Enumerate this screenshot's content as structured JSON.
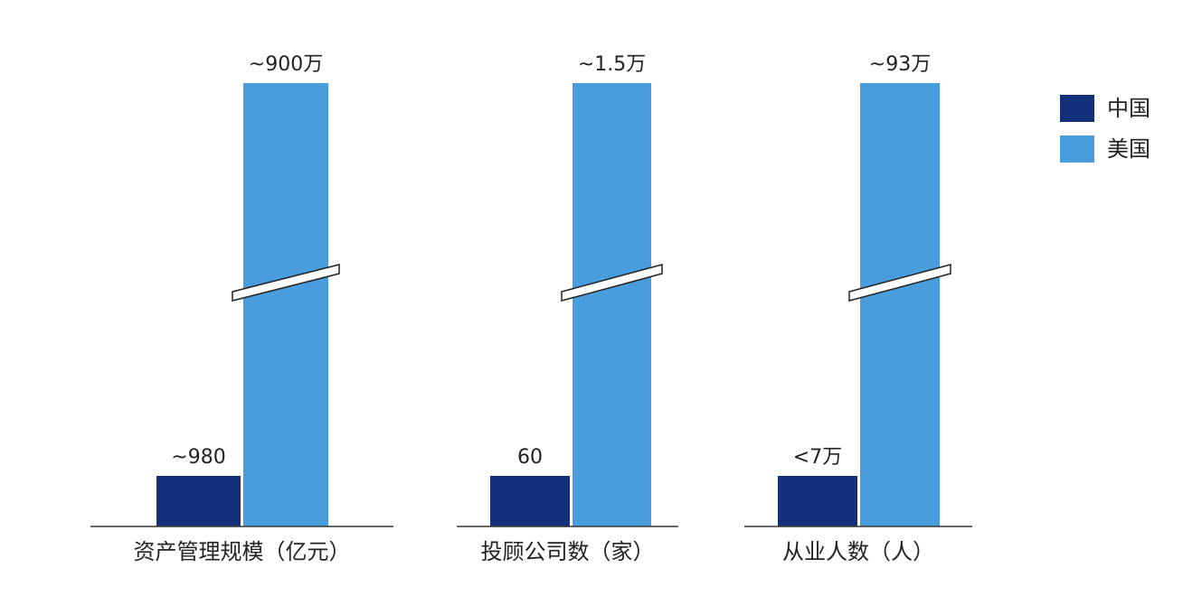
{
  "chart_data": {
    "type": "bar",
    "categories": [
      "资产管理规模（亿元）",
      "投顾公司数（家）",
      "从业人数（人）"
    ],
    "series": [
      {
        "name": "中国",
        "color": "#14307a",
        "values": [
          980,
          60,
          70000
        ],
        "value_labels": [
          "~980",
          "60",
          "<7万"
        ]
      },
      {
        "name": "美国",
        "color": "#4a9ddc",
        "values": [
          9000000,
          15000,
          930000
        ],
        "value_labels": [
          "~900万",
          "~1.5万",
          "~93万"
        ]
      }
    ],
    "axis_break": true,
    "legend": "top-right"
  }
}
